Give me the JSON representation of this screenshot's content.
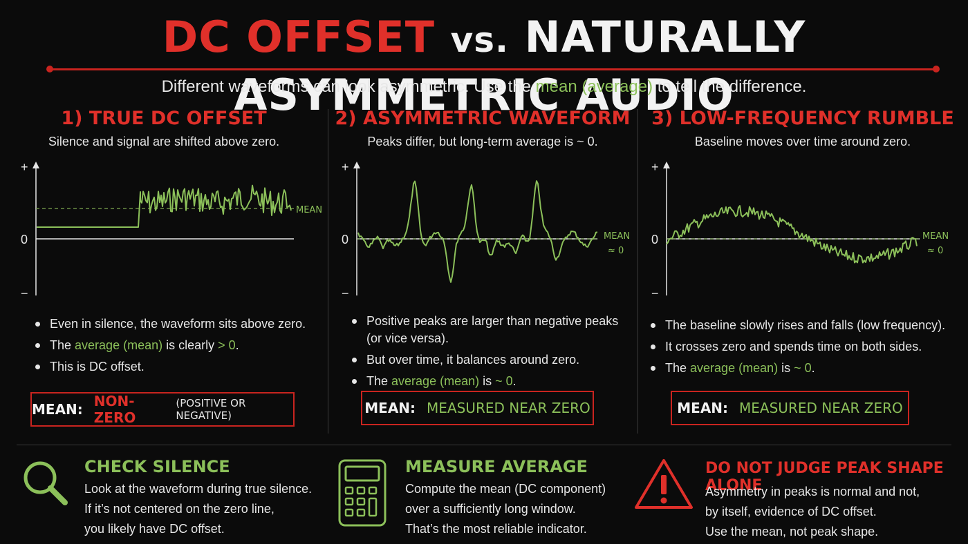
{
  "title": {
    "part1": "DC OFFSET",
    "part2": "vs.",
    "part3": "NATURALLY ASYMMETRIC AUDIO"
  },
  "subtitle": {
    "before": "Different waveforms can look asymmetric. Use the ",
    "highlight": "mean (average)",
    "after": " to tell the difference."
  },
  "axis": {
    "plus": "+",
    "zero": "0",
    "minus": "−"
  },
  "colors": {
    "red": "#e0302a",
    "green": "#8cc05a",
    "background": "#0b0b0b"
  },
  "columns": [
    {
      "heading": "1) TRUE DC OFFSET",
      "sub": "Silence and signal are shifted above zero.",
      "mean_label_1": "MEAN",
      "mean_label_2": "",
      "bullets": [
        {
          "before": "Even in silence, the waveform sits above zero.",
          "hl": "",
          "after": ""
        },
        {
          "before": "The ",
          "hl": "average (mean)",
          "after": " is clearly ",
          "hl2": "> 0",
          "after2": "."
        },
        {
          "before": "This is DC offset.",
          "hl": "",
          "after": ""
        }
      ],
      "box": {
        "label": "MEAN:",
        "value": "NON-ZERO",
        "note": "(POSITIVE OR NEGATIVE)"
      }
    },
    {
      "heading": "2) ASYMMETRIC WAVEFORM",
      "sub": "Peaks differ, but long-term average is ~ 0.",
      "mean_label_1": "MEAN",
      "mean_label_2": "≈ 0",
      "bullets": [
        {
          "before": "Positive peaks are larger than negative peaks (or vice versa).",
          "hl": "",
          "after": ""
        },
        {
          "before": "But over time, it balances around zero.",
          "hl": "",
          "after": ""
        },
        {
          "before": "The ",
          "hl": "average (mean)",
          "after": " is ",
          "hl2": "~ 0",
          "after2": "."
        }
      ],
      "box": {
        "label": "MEAN:",
        "value": "MEASURED NEAR ZERO",
        "note": ""
      }
    },
    {
      "heading": "3) LOW-FREQUENCY RUMBLE",
      "sub": "Baseline moves over time around zero.",
      "mean_label_1": "MEAN",
      "mean_label_2": "≈ 0",
      "bullets": [
        {
          "before": "The baseline slowly rises and falls (low frequency).",
          "hl": "",
          "after": ""
        },
        {
          "before": "It crosses zero and spends time on both sides.",
          "hl": "",
          "after": ""
        },
        {
          "before": "The ",
          "hl": "average (mean)",
          "after": " is ",
          "hl2": "~ 0",
          "after2": "."
        }
      ],
      "box": {
        "label": "MEAN:",
        "value": "MEASURED NEAR ZERO",
        "note": ""
      }
    }
  ],
  "tips": [
    {
      "heading": "CHECK SILENCE",
      "icon": "magnifier-icon",
      "lines": [
        "Look at the waveform during true silence.",
        "If it’s not centered on the zero line,",
        "you likely have DC offset."
      ]
    },
    {
      "heading": "MEASURE AVERAGE",
      "icon": "calculator-icon",
      "lines": [
        "Compute the mean (DC component)",
        "over a sufficiently long window.",
        "That’s the most reliable indicator."
      ]
    },
    {
      "heading": "DO NOT JUDGE PEAK SHAPE ALONE",
      "icon": "warning-icon",
      "lines": [
        "Asymmetry in peaks is normal and not,",
        "by itself, evidence of DC offset.",
        "Use the mean, not peak shape."
      ]
    }
  ]
}
